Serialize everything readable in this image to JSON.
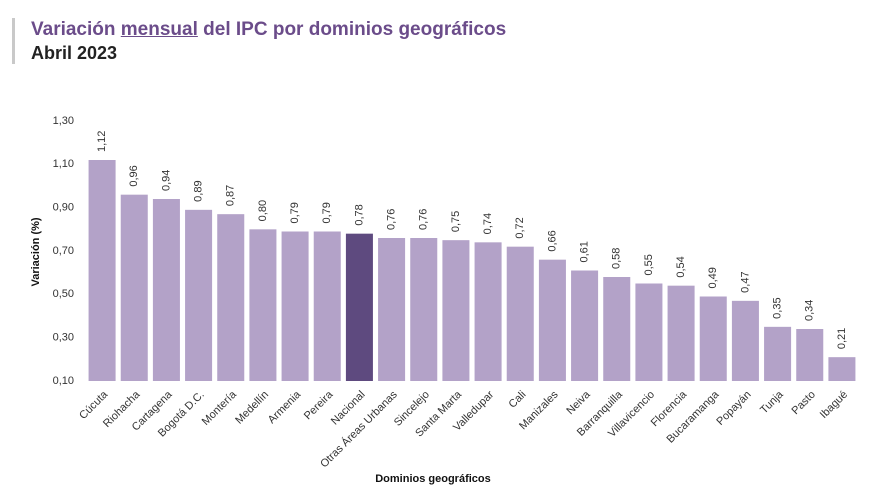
{
  "chart_data": {
    "type": "bar",
    "title": [
      "Variación",
      "mensual",
      "del IPC por dominios geográficos"
    ],
    "subtitle": "Abril 2023",
    "y_label": "Variación (%)",
    "x_label": "Dominios geográficos",
    "categories": [
      "Cúcuta",
      "Riohacha",
      "Cartagena",
      "Bogotá D.C.",
      "Montería",
      "Medellín",
      "Armenia",
      "Pereira",
      "Nacional",
      "Otras Áreas Urbanas",
      "Sincelejo",
      "Santa Marta",
      "Valledupar",
      "Cali",
      "Manizales",
      "Neiva",
      "Barranquilla",
      "Villavicencio",
      "Florencia",
      "Bucaramanga",
      "Popayán",
      "Tunja",
      "Pasto",
      "Ibagué"
    ],
    "values": [
      1.12,
      0.96,
      0.94,
      0.89,
      0.87,
      0.8,
      0.79,
      0.79,
      0.78,
      0.76,
      0.76,
      0.75,
      0.74,
      0.72,
      0.66,
      0.61,
      0.58,
      0.55,
      0.54,
      0.49,
      0.47,
      0.35,
      0.34,
      0.21
    ],
    "value_labels": [
      "1,12",
      "0,96",
      "0,94",
      "0,89",
      "0,87",
      "0,80",
      "0,79",
      "0,79",
      "0,78",
      "0,76",
      "0,76",
      "0,75",
      "0,74",
      "0,72",
      "0,66",
      "0,61",
      "0,58",
      "0,55",
      "0,54",
      "0,49",
      "0,47",
      "0,35",
      "0,34",
      "0,21"
    ],
    "colors": [
      "#b3a2c8",
      "#b3a2c8",
      "#b3a2c8",
      "#b3a2c8",
      "#b3a2c8",
      "#b3a2c8",
      "#b3a2c8",
      "#b3a2c8",
      "#5e4a7f",
      "#b3a2c8",
      "#b3a2c8",
      "#b3a2c8",
      "#b3a2c8",
      "#b3a2c8",
      "#b3a2c8",
      "#b3a2c8",
      "#b3a2c8",
      "#b3a2c8",
      "#b3a2c8",
      "#b3a2c8",
      "#b3a2c8",
      "#b3a2c8",
      "#b3a2c8",
      "#b3a2c8"
    ],
    "ylim": [
      0.1,
      1.3
    ],
    "yticks": [
      {
        "value": 0.1,
        "label": "0,10"
      },
      {
        "value": 0.3,
        "label": "0,30"
      },
      {
        "value": 0.5,
        "label": "0,50"
      },
      {
        "value": 0.7,
        "label": "0,70"
      },
      {
        "value": 0.9,
        "label": "0,90"
      },
      {
        "value": 1.1,
        "label": "1,10"
      },
      {
        "value": 1.3,
        "label": "1,30"
      }
    ],
    "grid": false
  }
}
